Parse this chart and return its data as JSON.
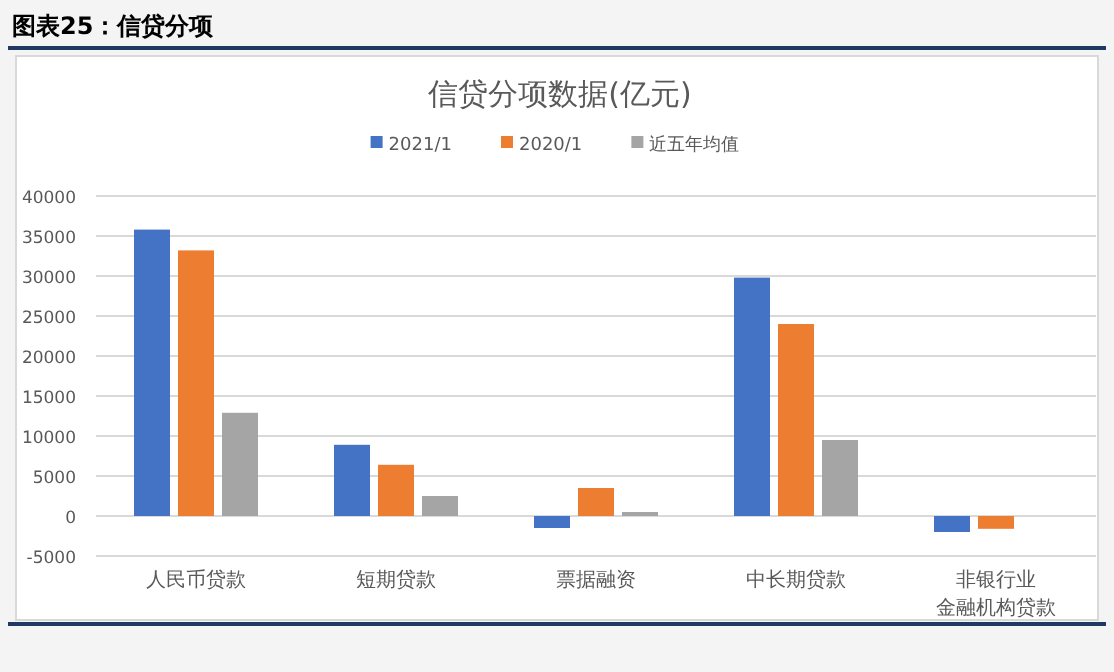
{
  "chart_data": {
    "type": "bar",
    "title": "图表25：信贷分项",
    "subtitle": "信贷分项数据(亿元)",
    "categories": [
      "人民币贷款",
      "短期贷款",
      "票据融资",
      "中长期贷款",
      "非银行业金融机构贷款"
    ],
    "series": [
      {
        "name": "2021/1",
        "color": "#4472c4",
        "values": [
          35800,
          8900,
          -1500,
          29800,
          -2000
        ]
      },
      {
        "name": "2020/1",
        "color": "#ed7d31",
        "values": [
          33200,
          6400,
          3500,
          24000,
          -1600
        ]
      },
      {
        "name": "近五年均值",
        "color": "#a5a5a5",
        "values": [
          12900,
          2500,
          500,
          9500,
          null
        ]
      }
    ],
    "ylim": [
      -5000,
      40000
    ],
    "yticks": [
      -5000,
      0,
      5000,
      10000,
      15000,
      20000,
      25000,
      30000,
      35000,
      40000
    ],
    "grid": "y",
    "legend": "top"
  }
}
